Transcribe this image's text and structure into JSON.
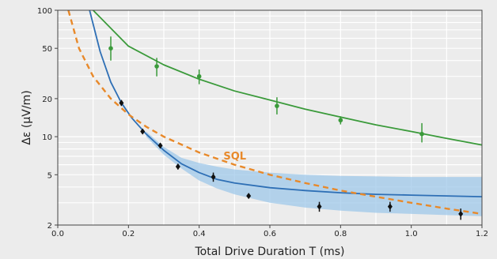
{
  "chart_data": {
    "type": "scatter",
    "xlabel": "Total Drive Duration T (ms)",
    "ylabel": "Δε (μV/m)",
    "xlim": [
      0.0,
      1.2
    ],
    "ylim": [
      2,
      100
    ],
    "yscale": "log",
    "grid": true,
    "x_ticks": [
      "0.0",
      "0.2",
      "0.4",
      "0.6",
      "0.8",
      "1.0",
      "1.2"
    ],
    "y_ticks": [
      "2",
      "5",
      "10",
      "20",
      "50",
      "100"
    ],
    "annotations": [
      {
        "text": "SQL",
        "x": 0.5,
        "y": 6.6
      }
    ],
    "colors": {
      "green": "#3a9a3a",
      "black": "#111111",
      "blue": "#2e6fb5",
      "band": "#9fc8ea",
      "sql": "#e8892a",
      "background": "#ececec"
    },
    "series": [
      {
        "kind": "points",
        "color": "green",
        "x": [
          0.15,
          0.28,
          0.4,
          0.62,
          0.8,
          1.03
        ],
        "y": [
          50,
          36,
          30,
          17.5,
          13.5,
          10.5
        ],
        "y_err_low": [
          40,
          30,
          26,
          15,
          12.5,
          9
        ],
        "y_err_high": [
          62,
          42,
          34,
          20.5,
          14.5,
          12.8
        ]
      },
      {
        "kind": "points",
        "color": "black",
        "x": [
          0.18,
          0.24,
          0.29,
          0.34,
          0.44,
          0.54,
          0.74,
          0.94,
          1.14
        ],
        "y": [
          18.5,
          11.0,
          8.5,
          5.8,
          4.8,
          3.4,
          2.8,
          2.8,
          2.45
        ],
        "y_err_low": [
          17.5,
          10.5,
          8.1,
          5.5,
          4.4,
          3.25,
          2.55,
          2.55,
          2.2
        ],
        "y_err_high": [
          19.5,
          11.5,
          8.9,
          6.1,
          5.2,
          3.55,
          3.05,
          3.05,
          2.7
        ]
      },
      {
        "kind": "line",
        "color": "green",
        "x": [
          0.1,
          0.2,
          0.3,
          0.4,
          0.5,
          0.6,
          0.7,
          0.8,
          0.9,
          1.0,
          1.1,
          1.2
        ],
        "y": [
          110,
          52,
          37,
          28.5,
          23,
          19.5,
          16.5,
          14.3,
          12.4,
          11.0,
          9.7,
          8.6
        ]
      },
      {
        "kind": "line",
        "color": "blue",
        "x": [
          0.09,
          0.12,
          0.15,
          0.18,
          0.21,
          0.25,
          0.3,
          0.35,
          0.4,
          0.45,
          0.5,
          0.6,
          0.7,
          0.8,
          0.9,
          1.0,
          1.1,
          1.2
        ],
        "y": [
          100,
          47,
          27,
          18.5,
          14,
          10.5,
          7.8,
          6.1,
          5.2,
          4.6,
          4.3,
          3.95,
          3.75,
          3.6,
          3.5,
          3.45,
          3.4,
          3.35
        ]
      },
      {
        "kind": "band",
        "color": "band",
        "x": [
          0.25,
          0.3,
          0.35,
          0.4,
          0.45,
          0.5,
          0.6,
          0.7,
          0.8,
          0.9,
          1.0,
          1.1,
          1.2
        ],
        "y_low": [
          10.0,
          7.2,
          5.6,
          4.5,
          3.9,
          3.5,
          3.0,
          2.75,
          2.6,
          2.5,
          2.45,
          2.4,
          2.35
        ],
        "y_high": [
          11.0,
          8.3,
          6.8,
          6.2,
          5.8,
          5.5,
          5.2,
          5.0,
          4.9,
          4.85,
          4.8,
          4.8,
          4.8
        ]
      },
      {
        "kind": "dashed-line",
        "color": "sql",
        "x": [
          0.03,
          0.06,
          0.1,
          0.15,
          0.2,
          0.25,
          0.3,
          0.4,
          0.5,
          0.6,
          0.7,
          0.8,
          0.9,
          1.0,
          1.1,
          1.2
        ],
        "y": [
          100,
          50,
          30,
          20,
          15,
          12,
          10,
          7.5,
          6.0,
          5.0,
          4.3,
          3.75,
          3.35,
          3.0,
          2.7,
          2.45
        ]
      }
    ]
  }
}
